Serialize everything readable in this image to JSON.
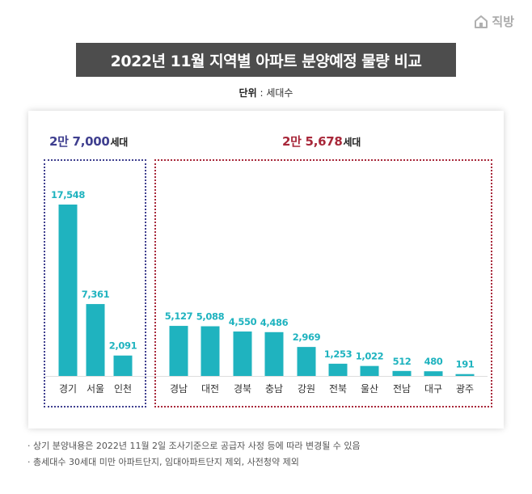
{
  "brand": {
    "logo_text": "직방",
    "logo_icon": "house-icon"
  },
  "title": "2022년 11월 지역별 아파트 분양예정 물량 비교",
  "unit": {
    "label": "단위",
    "separator": " : ",
    "value": "세대수"
  },
  "groups": [
    {
      "total_number": "2만 7,000",
      "total_suffix": "세대",
      "color": "#3f3f8f"
    },
    {
      "total_number": "2만 5,678",
      "total_suffix": "세대",
      "color": "#a8283a"
    }
  ],
  "notes": [
    "상기 분양내용은 2022년 11월 2일 조사기준으로 공급자 사정 등에 따라 변경될 수 있음",
    "총세대수 30세대 미만 아파트단지, 임대아파트단지 제외, 사전청약 제외"
  ],
  "chart_data": {
    "type": "bar",
    "bar_color": "#1fb3bf",
    "label_color": "#1fb3bf",
    "categories": [
      "경기",
      "서울",
      "인천",
      "경남",
      "대전",
      "경북",
      "충남",
      "강원",
      "전북",
      "울산",
      "전남",
      "대구",
      "광주"
    ],
    "values": [
      17548,
      7361,
      2091,
      5127,
      5088,
      4550,
      4486,
      2969,
      1253,
      1022,
      512,
      480,
      191
    ],
    "value_labels": [
      "17,548",
      "7,361",
      "2,091",
      "5,127",
      "5,088",
      "4,550",
      "4,486",
      "2,969",
      "1,253",
      "1,022",
      "512",
      "480",
      "191"
    ],
    "title": "",
    "xlabel": "",
    "ylabel": "",
    "grid": false,
    "legend": "none"
  }
}
